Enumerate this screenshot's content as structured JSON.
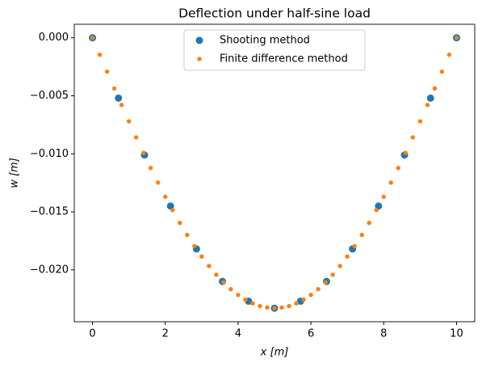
{
  "chart_data": {
    "type": "scatter",
    "title": "Deflection under half-sine load",
    "xlabel": "x [m]",
    "ylabel": "w [m]",
    "xlim": [
      -0.5,
      10.5
    ],
    "ylim": [
      -0.02447,
      0.001165
    ],
    "xticks": [
      0,
      2,
      4,
      6,
      8,
      10
    ],
    "yticks": [
      {
        "value": 0,
        "label": "0.000"
      },
      {
        "value": -0.005,
        "label": "−0.005"
      },
      {
        "value": -0.01,
        "label": "−0.010"
      },
      {
        "value": -0.015,
        "label": "−0.015"
      },
      {
        "value": -0.02,
        "label": "−0.020"
      }
    ],
    "legend": "upper center",
    "series": [
      {
        "name": "Shooting method",
        "color": "#1f77b4",
        "x": [
          0,
          0.714,
          1.429,
          2.143,
          2.857,
          3.571,
          4.286,
          5,
          5.714,
          6.429,
          7.143,
          7.857,
          8.571,
          9.286,
          10
        ],
        "values": [
          0,
          -0.0052,
          -0.0101,
          -0.0145,
          -0.0182,
          -0.021,
          -0.0227,
          -0.0233,
          -0.0227,
          -0.021,
          -0.0182,
          -0.0145,
          -0.0101,
          -0.0052,
          0
        ]
      },
      {
        "name": "Finite difference method",
        "color": "#ff7f0e",
        "x": [
          0,
          0.2,
          0.4,
          0.6,
          0.8,
          1,
          1.2,
          1.4,
          1.6,
          1.8,
          2,
          2.2,
          2.4,
          2.6,
          2.8,
          3,
          3.2,
          3.4,
          3.6,
          3.8,
          4,
          4.2,
          4.4,
          4.6,
          4.8,
          5,
          5.2,
          5.4,
          5.6,
          5.8,
          6,
          6.2,
          6.4,
          6.6,
          6.8,
          7,
          7.2,
          7.4,
          7.6,
          7.8,
          8,
          8.2,
          8.4,
          8.6,
          8.8,
          9,
          9.2,
          9.4,
          9.6,
          9.8,
          10
        ],
        "values": [
          0,
          -0.00146,
          -0.00292,
          -0.00437,
          -0.00579,
          -0.0072,
          -0.00858,
          -0.00992,
          -0.01122,
          -0.01248,
          -0.0137,
          -0.01485,
          -0.01595,
          -0.01699,
          -0.01795,
          -0.01885,
          -0.01967,
          -0.02042,
          -0.02108,
          -0.02166,
          -0.02216,
          -0.02257,
          -0.02289,
          -0.02312,
          -0.02325,
          -0.0233,
          -0.02325,
          -0.02312,
          -0.02289,
          -0.02257,
          -0.02216,
          -0.02166,
          -0.02108,
          -0.02042,
          -0.01967,
          -0.01885,
          -0.01795,
          -0.01699,
          -0.01595,
          -0.01485,
          -0.0137,
          -0.01248,
          -0.01122,
          -0.00992,
          -0.00858,
          -0.0072,
          -0.00579,
          -0.00437,
          -0.00292,
          -0.00146,
          0
        ]
      }
    ]
  }
}
